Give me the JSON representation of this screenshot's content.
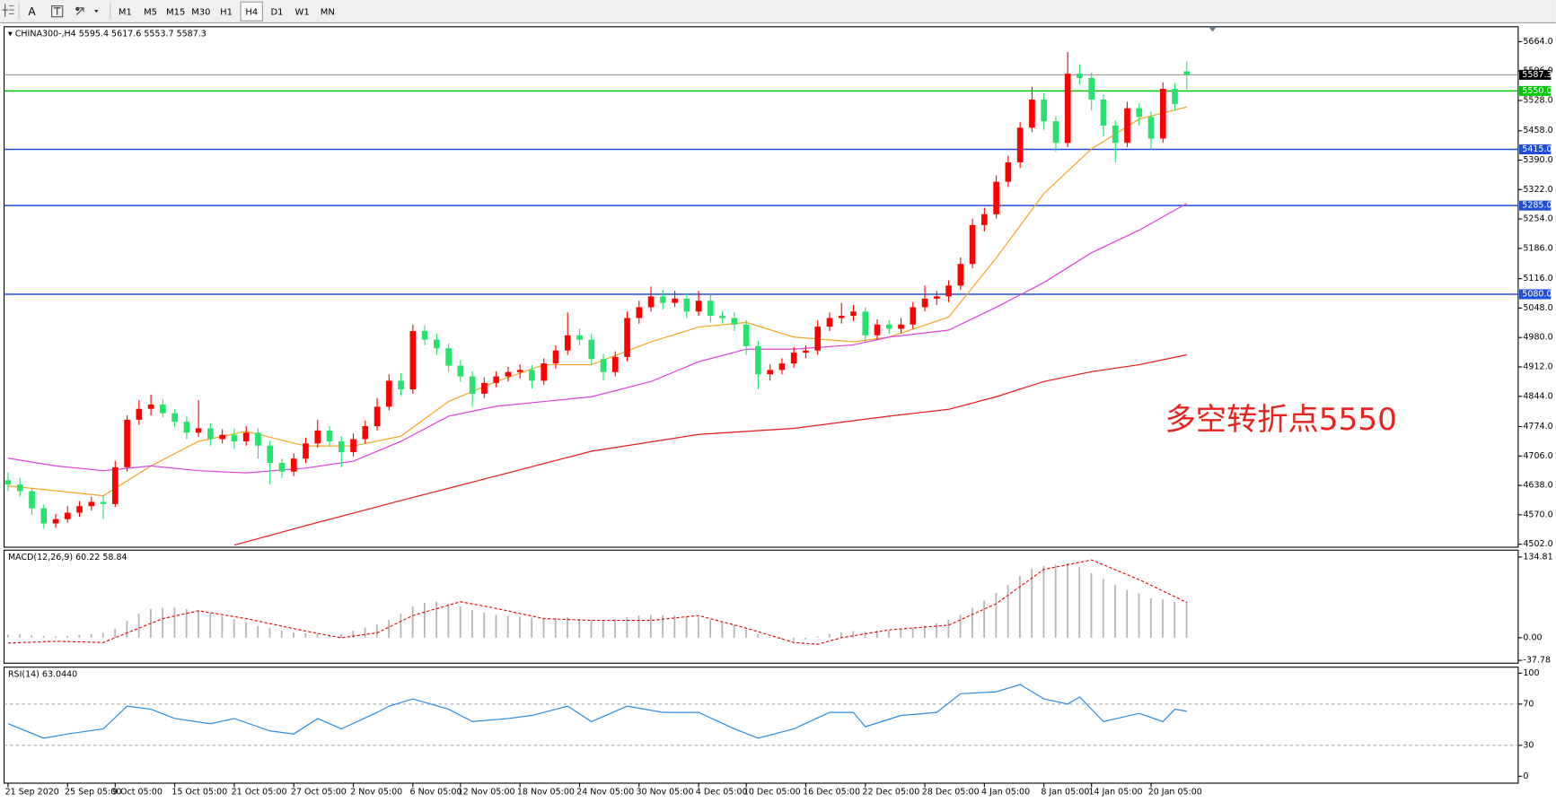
{
  "toolbar": {
    "tools": [
      "A"
    ],
    "timeframes": [
      "M1",
      "M5",
      "M15",
      "M30",
      "H1",
      "H4",
      "D1",
      "W1",
      "MN"
    ],
    "active": "H4"
  },
  "chart_data": [
    {
      "type": "candlestick",
      "title": "CHINA300-,H4",
      "categories": [
        "21 Sep 2020",
        null,
        null,
        null,
        null,
        "25 Sep 05:00",
        null,
        null,
        null,
        "9 Oct 05:00",
        null,
        null,
        null,
        null,
        "15 Oct 05:00",
        null,
        null,
        null,
        null,
        "21 Oct 05:00",
        null,
        null,
        null,
        null,
        "27 Oct 05:00",
        null,
        null,
        null,
        null,
        "2 Nov 05:00",
        null,
        null,
        null,
        null,
        "6 Nov 05:00",
        null,
        null,
        null,
        "12 Nov 05:00",
        null,
        null,
        null,
        null,
        "18 Nov 05:00",
        null,
        null,
        null,
        null,
        "24 Nov 05:00",
        null,
        null,
        null,
        null,
        "30 Nov 05:00",
        null,
        null,
        null,
        null,
        "4 Dec 05:00",
        null,
        null,
        null,
        "10 Dec 05:00",
        null,
        null,
        null,
        null,
        "16 Dec 05:00",
        null,
        null,
        null,
        null,
        "22 Dec 05:00",
        null,
        null,
        null,
        null,
        "28 Dec 05:00",
        null,
        null,
        null,
        null,
        "4 Jan 05:00",
        null,
        null,
        null,
        null,
        "8 Jan 05:00",
        null,
        null,
        null,
        "14 Jan 05:00",
        null,
        null,
        null,
        null,
        "20 Jan 05:00",
        null,
        null,
        null
      ],
      "candles": [
        [
          4650,
          4668,
          4625,
          4640
        ],
        [
          4640,
          4655,
          4612,
          4625
        ],
        [
          4625,
          4632,
          4570,
          4585
        ],
        [
          4585,
          4594,
          4538,
          4550
        ],
        [
          4550,
          4572,
          4540,
          4560
        ],
        [
          4560,
          4590,
          4552,
          4575
        ],
        [
          4575,
          4602,
          4565,
          4590
        ],
        [
          4590,
          4612,
          4580,
          4600
        ],
        [
          4600,
          4615,
          4560,
          4595
        ],
        [
          4595,
          4695,
          4588,
          4680
        ],
        [
          4680,
          4800,
          4670,
          4790
        ],
        [
          4790,
          4835,
          4778,
          4815
        ],
        [
          4815,
          4848,
          4800,
          4825
        ],
        [
          4825,
          4838,
          4795,
          4805
        ],
        [
          4805,
          4815,
          4772,
          4785
        ],
        [
          4785,
          4798,
          4745,
          4760
        ],
        [
          4760,
          4835,
          4750,
          4770
        ],
        [
          4770,
          4782,
          4730,
          4745
        ],
        [
          4745,
          4768,
          4735,
          4755
        ],
        [
          4755,
          4770,
          4722,
          4740
        ],
        [
          4740,
          4775,
          4730,
          4760
        ],
        [
          4760,
          4770,
          4700,
          4730
        ],
        [
          4730,
          4742,
          4640,
          4690
        ],
        [
          4690,
          4700,
          4655,
          4670
        ],
        [
          4670,
          4712,
          4660,
          4700
        ],
        [
          4700,
          4748,
          4690,
          4735
        ],
        [
          4735,
          4790,
          4725,
          4765
        ],
        [
          4765,
          4775,
          4728,
          4740
        ],
        [
          4740,
          4752,
          4680,
          4715
        ],
        [
          4715,
          4758,
          4705,
          4745
        ],
        [
          4745,
          4788,
          4735,
          4775
        ],
        [
          4775,
          4840,
          4765,
          4820
        ],
        [
          4820,
          4895,
          4812,
          4880
        ],
        [
          4880,
          4898,
          4845,
          4860
        ],
        [
          4860,
          5010,
          4850,
          4995
        ],
        [
          4995,
          5008,
          4962,
          4975
        ],
        [
          4975,
          4990,
          4940,
          4955
        ],
        [
          4955,
          4966,
          4900,
          4915
        ],
        [
          4915,
          4928,
          4878,
          4890
        ],
        [
          4890,
          4902,
          4820,
          4850
        ],
        [
          4850,
          4888,
          4840,
          4875
        ],
        [
          4875,
          4902,
          4865,
          4890
        ],
        [
          4890,
          4912,
          4878,
          4900
        ],
        [
          4900,
          4918,
          4885,
          4905
        ],
        [
          4905,
          4916,
          4862,
          4880
        ],
        [
          4880,
          4932,
          4870,
          4920
        ],
        [
          4920,
          4962,
          4908,
          4950
        ],
        [
          4950,
          5038,
          4940,
          4985
        ],
        [
          4985,
          5000,
          4962,
          4975
        ],
        [
          4975,
          4988,
          4918,
          4930
        ],
        [
          4930,
          4942,
          4880,
          4900
        ],
        [
          4900,
          4948,
          4890,
          4935
        ],
        [
          4935,
          5040,
          4925,
          5025
        ],
        [
          5025,
          5065,
          5012,
          5050
        ],
        [
          5050,
          5098,
          5040,
          5075
        ],
        [
          5075,
          5090,
          5045,
          5060
        ],
        [
          5060,
          5088,
          5050,
          5070
        ],
        [
          5070,
          5082,
          5025,
          5040
        ],
        [
          5040,
          5088,
          5030,
          5065
        ],
        [
          5065,
          5078,
          5015,
          5030
        ],
        [
          5030,
          5042,
          5012,
          5025
        ],
        [
          5025,
          5038,
          4995,
          5010
        ],
        [
          5010,
          5020,
          4940,
          4960
        ],
        [
          4960,
          4972,
          4860,
          4895
        ],
        [
          4895,
          4918,
          4880,
          4905
        ],
        [
          4905,
          4932,
          4895,
          4920
        ],
        [
          4920,
          4958,
          4910,
          4945
        ],
        [
          4945,
          4962,
          4932,
          4950
        ],
        [
          4950,
          5020,
          4940,
          5005
        ],
        [
          5005,
          5038,
          4995,
          5025
        ],
        [
          5025,
          5060,
          5012,
          5030
        ],
        [
          5030,
          5055,
          5018,
          5040
        ],
        [
          5040,
          5050,
          4970,
          4985
        ],
        [
          4985,
          5022,
          4975,
          5010
        ],
        [
          5010,
          5020,
          4988,
          5000
        ],
        [
          5000,
          5025,
          4990,
          5010
        ],
        [
          5010,
          5062,
          5000,
          5050
        ],
        [
          5050,
          5100,
          5040,
          5070
        ],
        [
          5070,
          5088,
          5055,
          5075
        ],
        [
          5075,
          5112,
          5062,
          5100
        ],
        [
          5100,
          5165,
          5090,
          5150
        ],
        [
          5150,
          5255,
          5140,
          5240
        ],
        [
          5240,
          5280,
          5225,
          5265
        ],
        [
          5265,
          5355,
          5255,
          5340
        ],
        [
          5340,
          5400,
          5328,
          5385
        ],
        [
          5385,
          5478,
          5372,
          5465
        ],
        [
          5465,
          5560,
          5455,
          5530
        ],
        [
          5530,
          5545,
          5460,
          5480
        ],
        [
          5480,
          5492,
          5410,
          5430
        ],
        [
          5430,
          5640,
          5420,
          5590
        ],
        [
          5590,
          5612,
          5565,
          5580
        ],
        [
          5580,
          5592,
          5505,
          5530
        ],
        [
          5530,
          5542,
          5445,
          5470
        ],
        [
          5470,
          5482,
          5385,
          5430
        ],
        [
          5430,
          5525,
          5420,
          5510
        ],
        [
          5510,
          5522,
          5470,
          5490
        ],
        [
          5490,
          5502,
          5415,
          5440
        ],
        [
          5440,
          5570,
          5430,
          5555
        ],
        [
          5555,
          5568,
          5505,
          5520
        ],
        [
          5595.4,
          5617.6,
          5553.7,
          5587.3
        ]
      ],
      "up_color": "#ff0000",
      "down_color": "#25e36d",
      "ylim": [
        4495.1,
        5698.4
      ],
      "yticks": [
        {
          "value": 5664,
          "label": "5664.0"
        },
        {
          "value": 5596,
          "label": "5596.0"
        },
        {
          "value": 5528,
          "label": "5528.0"
        },
        {
          "value": 5458,
          "label": "5458.0"
        },
        {
          "value": 5390,
          "label": "5390.0"
        },
        {
          "value": 5322,
          "label": "5322.0"
        },
        {
          "value": 5254,
          "label": "5254.0"
        },
        {
          "value": 5186,
          "label": "5186.0"
        },
        {
          "value": 5116,
          "label": "5116.0"
        },
        {
          "value": 5048,
          "label": "5048.0"
        },
        {
          "value": 4980,
          "label": "4980.0"
        },
        {
          "value": 4912,
          "label": "4912.0"
        },
        {
          "value": 4844,
          "label": "4844.0"
        },
        {
          "value": 4774,
          "label": "4774.0"
        },
        {
          "value": 4706,
          "label": "4706.0"
        },
        {
          "value": 4638,
          "label": "4638.0"
        },
        {
          "value": 4570,
          "label": "4570.0"
        },
        {
          "value": 4502,
          "label": "4502.0"
        }
      ],
      "lines": [
        {
          "color": "#f5a623",
          "x": [
            0,
            8,
            12,
            16,
            20,
            25,
            29,
            33,
            37,
            41,
            45,
            49,
            54,
            58,
            62,
            66,
            71,
            74,
            79,
            83,
            87,
            91,
            95,
            99
          ],
          "values": [
            4637,
            4614,
            4683,
            4740,
            4763,
            4729,
            4729,
            4752,
            4832,
            4878,
            4917,
            4917,
            4970,
            5004,
            5015,
            4981,
            4970,
            4981,
            5027,
            5164,
            5313,
            5416,
            5485,
            5513
          ]
        },
        {
          "color": "#e040e0",
          "x": [
            0,
            4,
            8,
            12,
            16,
            20,
            25,
            29,
            33,
            37,
            41,
            45,
            49,
            54,
            58,
            62,
            66,
            71,
            74,
            79,
            83,
            87,
            91,
            95,
            99
          ],
          "values": [
            4701,
            4683,
            4672,
            4683,
            4672,
            4667,
            4678,
            4694,
            4740,
            4798,
            4821,
            4832,
            4843,
            4878,
            4924,
            4953,
            4953,
            4963,
            4981,
            4997,
            5050,
            5107,
            5176,
            5228,
            5290
          ]
        },
        {
          "color": "#e81818",
          "x": [
            19,
            25,
            33,
            41,
            49,
            58,
            66,
            74,
            79,
            83,
            87,
            91,
            95,
            99
          ],
          "values": [
            4500,
            4545,
            4603,
            4660,
            4717,
            4756,
            4770,
            4798,
            4814,
            4843,
            4878,
            4901,
            4917,
            4940
          ]
        }
      ],
      "levels": [
        {
          "value": 5550,
          "label": "5550.0",
          "color": "#00c800"
        },
        {
          "value": 5415,
          "label": "5415.0",
          "color": "#1f4fd6"
        },
        {
          "value": 5285,
          "label": "5285.0",
          "color": "#1f4fd6"
        },
        {
          "value": 5080,
          "label": "5080.0",
          "color": "#1f4fd6"
        }
      ],
      "last_price_color": "#9a9a9a",
      "annotation": "多空转折点5550",
      "annotation_color": "#e8231e"
    },
    {
      "type": "bar",
      "title": "MACD(12,26,9)",
      "values": [
        5,
        6,
        4,
        3,
        2,
        3,
        5,
        6,
        8,
        15,
        28,
        40,
        48,
        50,
        50,
        48,
        45,
        41,
        36,
        31,
        26,
        20,
        16,
        12,
        9,
        8,
        7,
        5,
        6,
        12,
        17,
        22,
        30,
        40,
        52,
        58,
        60,
        57,
        52,
        46,
        42,
        38,
        36,
        35,
        33,
        32,
        33,
        34,
        31,
        29,
        28,
        30,
        34,
        37,
        38,
        38,
        37,
        35,
        34,
        30,
        26,
        22,
        14,
        6,
        1,
        -3,
        -5,
        -3,
        2,
        6,
        9,
        11,
        10,
        12,
        12,
        14,
        17,
        20,
        24,
        30,
        38,
        50,
        62,
        75,
        88,
        103,
        115,
        120,
        122,
        124,
        118,
        108,
        98,
        88,
        80,
        74,
        66,
        64,
        60,
        60.22
      ],
      "color": "#b4b4b4",
      "signal": {
        "color": "#e00000",
        "x": [
          0,
          4,
          8,
          10,
          13,
          16,
          20,
          25,
          28,
          31,
          34,
          38,
          41,
          45,
          49,
          54,
          58,
          62,
          66,
          68,
          70,
          74,
          79,
          83,
          87,
          91,
          95,
          99
        ],
        "values": [
          -9,
          -6,
          -8,
          8,
          32,
          45,
          32,
          11,
          0,
          8,
          37,
          60,
          49,
          32,
          29,
          29,
          37,
          16,
          -8,
          -11,
          0,
          13,
          21,
          57,
          114,
          130,
          97,
          58.84
        ]
      },
      "ylim": [
        -42.6,
        146.2
      ],
      "yticks": [
        134.81,
        {
          "value": 0,
          "label": "0.00"
        },
        -37.78
      ]
    },
    {
      "type": "line",
      "title": "RSI(14)",
      "x": [
        0,
        3,
        5,
        8,
        10,
        12,
        14,
        17,
        19,
        22,
        24,
        26,
        28,
        31,
        32,
        34,
        37,
        39,
        42,
        44,
        47,
        49,
        52,
        55,
        58,
        61,
        63,
        66,
        69,
        71,
        72,
        75,
        78,
        80,
        83,
        85,
        87,
        89,
        90,
        92,
        95,
        97,
        98,
        99
      ],
      "values": [
        51,
        37,
        41,
        46,
        68,
        65,
        56,
        51,
        56,
        44,
        41,
        56,
        46,
        62,
        68,
        75,
        65,
        53,
        56,
        59,
        68,
        53,
        68,
        62,
        62,
        46,
        37,
        46,
        62,
        62,
        48,
        59,
        62,
        80,
        82,
        89,
        75,
        70,
        77,
        53,
        61,
        53,
        65,
        63.044
      ],
      "value_labels": [
        null,
        null,
        null,
        null,
        null,
        null,
        null,
        null,
        null,
        null,
        null,
        null,
        null,
        null,
        null,
        null,
        null,
        null,
        null,
        null,
        null,
        null,
        null,
        null,
        null,
        null,
        null,
        null,
        null,
        null,
        null,
        null,
        null,
        null,
        null,
        null,
        null,
        null,
        null,
        null,
        null,
        null,
        null,
        "63.0440"
      ],
      "color": "#2b8ce0",
      "ylim": [
        -6.7,
        105.8
      ],
      "yticks": [
        100,
        70,
        30,
        0
      ],
      "levels": [
        70,
        30
      ]
    }
  ]
}
